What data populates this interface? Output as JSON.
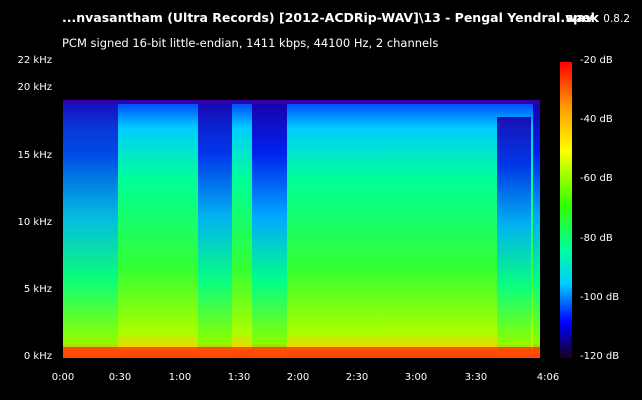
{
  "header": {
    "title": "...nvasantham (Ultra Records) [2012-ACDRip-WAV]\\13 - Pengal Yendral.wav",
    "app_name": "spek",
    "app_version": "0.8.2",
    "subtitle": "PCM signed 16-bit little-endian, 1411 kbps, 44100 Hz, 2 channels"
  },
  "axes": {
    "y_labels": [
      "22 kHz",
      "20 kHz",
      "15 kHz",
      "10 kHz",
      "5 kHz",
      "0 kHz"
    ],
    "x_labels": [
      "0:00",
      "0:30",
      "1:00",
      "1:30",
      "2:00",
      "2:30",
      "3:00",
      "3:30",
      "4:06"
    ],
    "db_labels": [
      "-20 dB",
      "-40 dB",
      "-60 dB",
      "-80 dB",
      "-100 dB",
      "-120 dB"
    ]
  },
  "colors": {
    "background": "#000000",
    "text": "#ffffff",
    "palette": [
      "#ffff00",
      "#ff0000",
      "#00ff00",
      "#00ffff",
      "#0000ff",
      "#1a0033"
    ]
  }
}
